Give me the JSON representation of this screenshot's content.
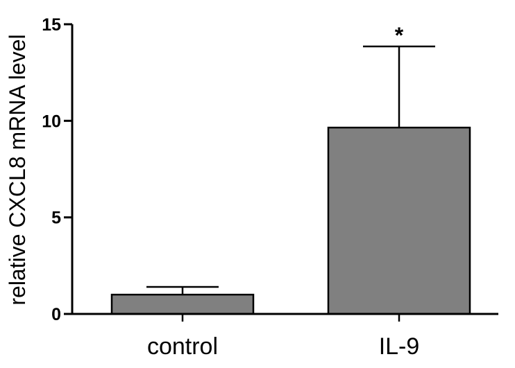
{
  "chart_data": {
    "type": "bar",
    "categories": [
      "control",
      "IL-9"
    ],
    "values": [
      1.0,
      9.65
    ],
    "error_upper": [
      1.4,
      13.85
    ],
    "significance": [
      "",
      "*"
    ],
    "xlabel": "",
    "ylabel": "relative CXCL8 mRNA level",
    "ylim": [
      0,
      15
    ],
    "yticks": [
      0,
      5,
      10,
      15
    ],
    "ytick_labels": [
      "0",
      "5",
      "10",
      "15"
    ],
    "grid": false,
    "legend": "none"
  },
  "colors": {
    "bar_fill": "#808080",
    "bar_stroke": "#000000",
    "axis": "#000000",
    "background": "#ffffff"
  }
}
